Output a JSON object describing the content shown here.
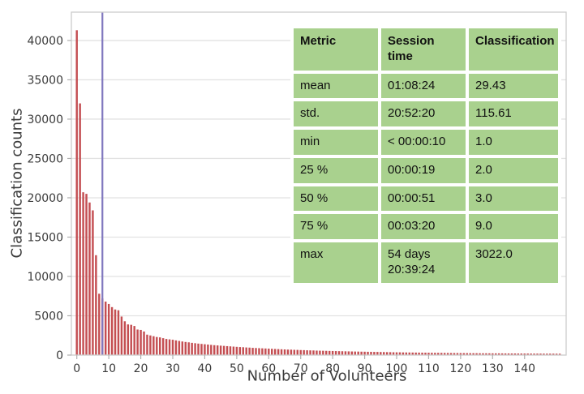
{
  "chart_data": {
    "type": "bar",
    "title": "",
    "xlabel": "Number of Volunteers",
    "ylabel": "Classification counts",
    "xlim": [
      -1.7,
      153.0
    ],
    "ylim": [
      0,
      43600
    ],
    "xticks": [
      0,
      10,
      20,
      30,
      40,
      50,
      60,
      70,
      80,
      90,
      100,
      110,
      120,
      130,
      140
    ],
    "yticks": [
      0,
      5000,
      10000,
      15000,
      20000,
      25000,
      30000,
      35000,
      40000
    ],
    "grid": "horizontal",
    "legend": "none",
    "bar_color": "#c44e52",
    "vline": {
      "x": 8,
      "color": "#8178bf",
      "label": "75th-percentile-marker"
    },
    "x_start": 0,
    "values": [
      41300,
      32000,
      20700,
      20500,
      19400,
      18400,
      12700,
      7800,
      7200,
      6800,
      6500,
      6100,
      5800,
      5700,
      4900,
      4300,
      3900,
      3850,
      3700,
      3250,
      3200,
      3000,
      2600,
      2500,
      2400,
      2300,
      2250,
      2150,
      2050,
      2000,
      1950,
      1870,
      1800,
      1730,
      1670,
      1620,
      1560,
      1510,
      1460,
      1420,
      1380,
      1340,
      1300,
      1260,
      1230,
      1200,
      1170,
      1140,
      1110,
      1080,
      1050,
      1020,
      1000,
      970,
      950,
      920,
      900,
      880,
      860,
      840,
      820,
      800,
      780,
      760,
      740,
      720,
      700,
      690,
      670,
      660,
      640,
      630,
      610,
      600,
      590,
      570,
      560,
      550,
      540,
      530,
      520,
      510,
      500,
      490,
      480,
      470,
      460,
      450,
      445,
      435,
      430,
      420,
      415,
      405,
      400,
      390,
      385,
      375,
      370,
      360,
      355,
      350,
      340,
      335,
      330,
      325,
      320,
      315,
      310,
      305,
      300,
      295,
      290,
      285,
      280,
      275,
      270,
      265,
      260,
      258,
      255,
      250,
      248,
      245,
      240,
      238,
      235,
      230,
      228,
      225,
      222,
      220,
      218,
      215,
      212,
      210,
      208,
      205,
      202,
      200,
      198,
      196,
      194,
      192,
      190,
      188,
      186,
      184,
      182,
      180,
      178,
      176
    ],
    "colors": {
      "gridline": "#e2e2e2",
      "frame": "#cccccc",
      "tick": "#b0b0b0",
      "tick_label": "#3a3a3a"
    }
  },
  "stats_table": {
    "cell_bg": "#a9d18e",
    "text_color": "#111111",
    "columns": [
      "Metric",
      "Session time",
      "Classification"
    ],
    "rows": [
      [
        "mean",
        "01:08:24",
        "29.43"
      ],
      [
        "std.",
        "20:52:20",
        "115.61"
      ],
      [
        "min",
        "< 00:00:10",
        "1.0"
      ],
      [
        "25 %",
        "00:00:19",
        "2.0"
      ],
      [
        "50 %",
        "00:00:51",
        "3.0"
      ],
      [
        "75 %",
        "00:03:20",
        "9.0"
      ],
      [
        "max",
        "54 days 20:39:24",
        "3022.0"
      ]
    ]
  }
}
